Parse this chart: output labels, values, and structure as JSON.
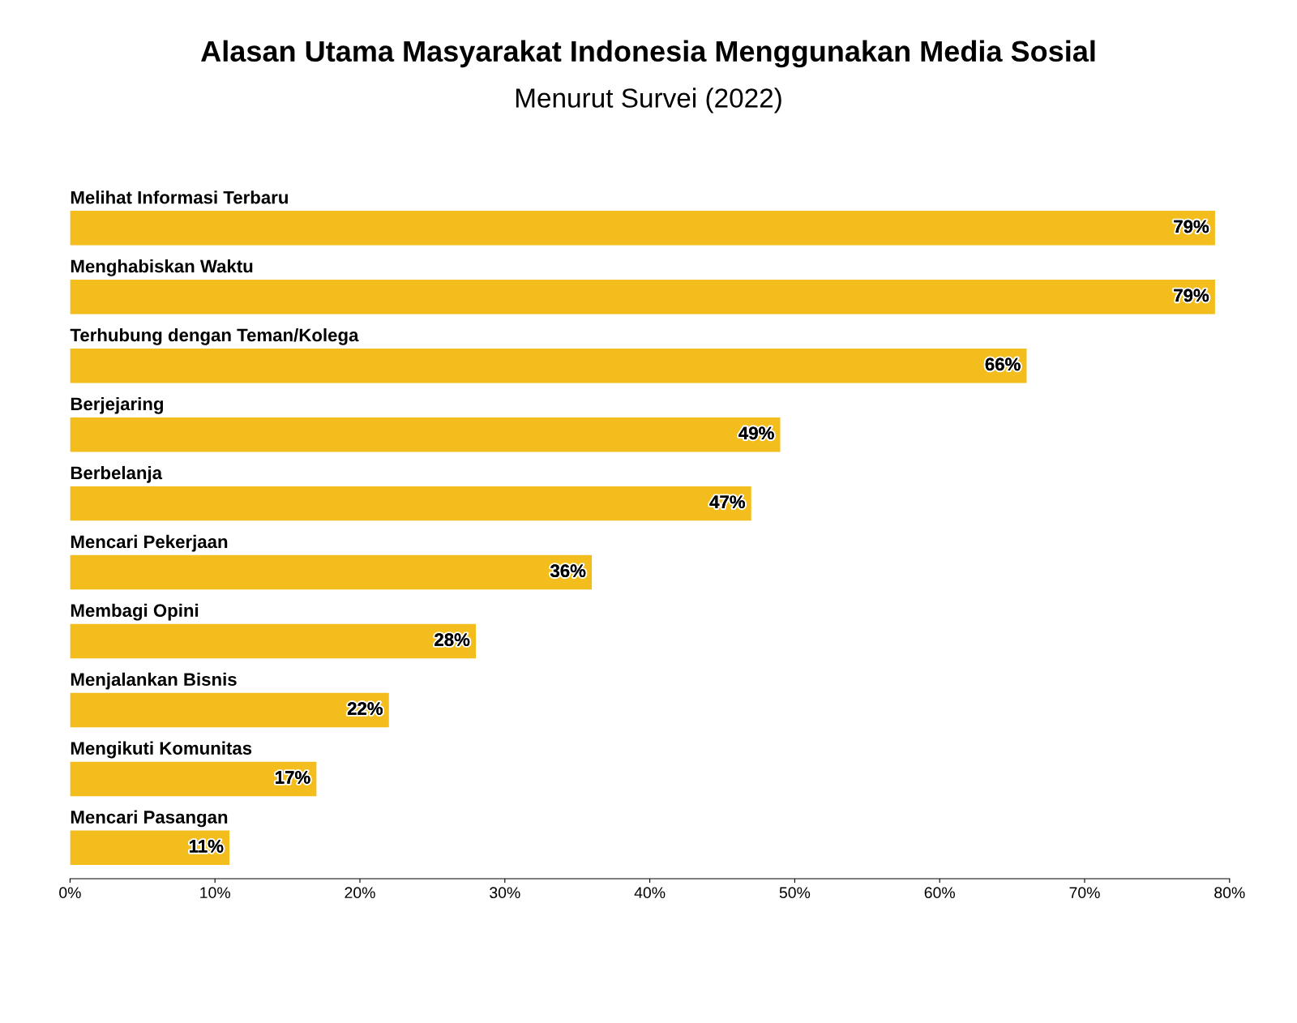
{
  "chart_data": {
    "type": "bar",
    "orientation": "horizontal",
    "title": "Alasan Utama Masyarakat Indonesia Menggunakan Media Sosial",
    "subtitle": "Menurut Survei (2022)",
    "categories": [
      "Melihat Informasi Terbaru",
      "Menghabiskan Waktu",
      "Terhubung dengan Teman/Kolega",
      "Berjejaring",
      "Berbelanja",
      "Mencari Pekerjaan",
      "Membagi Opini",
      "Menjalankan Bisnis",
      "Mengikuti Komunitas",
      "Mencari Pasangan"
    ],
    "values": [
      79,
      79,
      66,
      49,
      47,
      36,
      28,
      22,
      17,
      11
    ],
    "value_labels": [
      "79%",
      "79%",
      "66%",
      "49%",
      "47%",
      "36%",
      "28%",
      "22%",
      "17%",
      "11%"
    ],
    "color": "#f2bd1d",
    "xlim": [
      0,
      80
    ],
    "xticks": [
      {
        "value": 0,
        "label": "0%"
      },
      {
        "value": 10,
        "label": "10%"
      },
      {
        "value": 20,
        "label": "20%"
      },
      {
        "value": 30,
        "label": "30%"
      },
      {
        "value": 40,
        "label": "40%"
      },
      {
        "value": 50,
        "label": "50%"
      },
      {
        "value": 60,
        "label": "60%"
      },
      {
        "value": 70,
        "label": "70%"
      },
      {
        "value": 80,
        "label": "80%"
      }
    ],
    "grid": false,
    "legend": false
  }
}
